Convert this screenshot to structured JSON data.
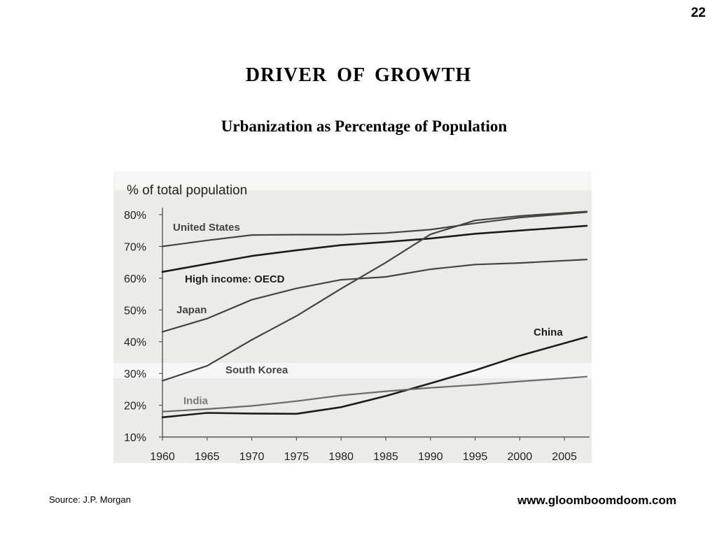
{
  "page_number": "22",
  "title": "DRIVER  OF  GROWTH",
  "subtitle": "Urbanization as Percentage of Population",
  "source": "Source: J.P. Morgan",
  "website": "www.gloomboomdoom.com",
  "chart_data": {
    "type": "line",
    "ylabel": "% of total population",
    "xlabel": "",
    "x_ticks": [
      "1960",
      "1965",
      "1970",
      "1975",
      "1980",
      "1985",
      "1990",
      "1995",
      "2000",
      "2005"
    ],
    "y_ticks": [
      "10%",
      "20%",
      "30%",
      "40%",
      "50%",
      "60%",
      "70%",
      "80%"
    ],
    "xlim": [
      1960,
      2007.5
    ],
    "ylim": [
      10,
      81
    ],
    "grid": false,
    "legend": "inline labels",
    "colors": {
      "panel": "#ebebea",
      "band": "#f7f7f7",
      "dark": "#1c1c1c",
      "mid": "#444444",
      "light": "#6a6a6a",
      "label_light": "#7a7a7a",
      "label_mid": "#444444"
    },
    "series": [
      {
        "name": "United States",
        "color": "#444444",
        "width": 2.2,
        "x": [
          1960,
          1965,
          1970,
          1975,
          1980,
          1985,
          1990,
          1995,
          2000,
          2007.5
        ],
        "y": [
          70.0,
          71.9,
          73.6,
          73.7,
          73.7,
          74.2,
          75.3,
          77.3,
          79.1,
          80.8
        ]
      },
      {
        "name": "High income: OECD",
        "color": "#1c1c1c",
        "width": 2.6,
        "x": [
          1960,
          1965,
          1970,
          1975,
          1980,
          1985,
          1990,
          1995,
          2000,
          2007.5
        ],
        "y": [
          62.0,
          64.5,
          67.0,
          68.8,
          70.4,
          71.4,
          72.5,
          74.0,
          75.0,
          76.5
        ]
      },
      {
        "name": "Japan",
        "color": "#444444",
        "width": 2.2,
        "x": [
          1960,
          1965,
          1970,
          1975,
          1980,
          1985,
          1990,
          1995,
          2000,
          2007.5
        ],
        "y": [
          43.1,
          47.3,
          53.2,
          56.8,
          59.5,
          60.4,
          62.8,
          64.3,
          64.8,
          65.9
        ]
      },
      {
        "name": "South Korea",
        "color": "#444444",
        "width": 2.2,
        "x": [
          1960,
          1965,
          1970,
          1975,
          1980,
          1985,
          1990,
          1995,
          2000,
          2007.5
        ],
        "y": [
          27.7,
          32.4,
          40.6,
          48.1,
          56.7,
          64.9,
          73.8,
          78.2,
          79.6,
          81.0
        ]
      },
      {
        "name": "China",
        "color": "#1c1c1c",
        "width": 2.6,
        "x": [
          1960,
          1965,
          1970,
          1975,
          1980,
          1985,
          1990,
          1995,
          2000,
          2007.5
        ],
        "y": [
          16.2,
          17.6,
          17.4,
          17.3,
          19.4,
          22.9,
          26.9,
          31.0,
          35.6,
          41.5
        ]
      },
      {
        "name": "India",
        "color": "#6a6a6a",
        "width": 2.2,
        "x": [
          1960,
          1965,
          1970,
          1975,
          1980,
          1985,
          1990,
          1995,
          2000,
          2007.5
        ],
        "y": [
          18.0,
          18.8,
          19.8,
          21.3,
          23.1,
          24.4,
          25.5,
          26.4,
          27.5,
          29.0
        ]
      }
    ]
  }
}
